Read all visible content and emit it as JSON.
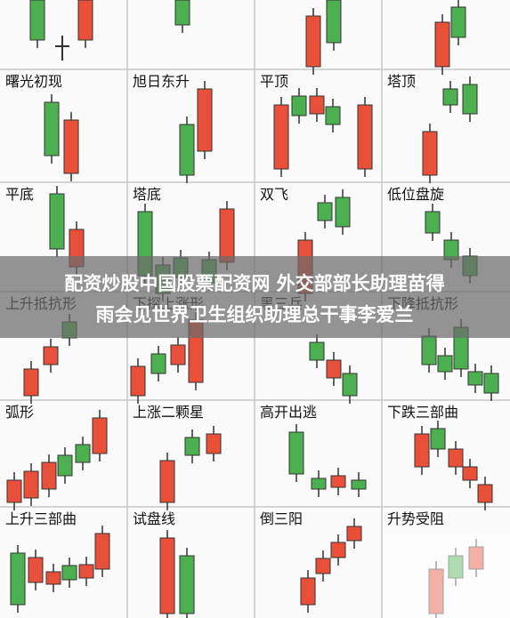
{
  "cells": [
    {
      "label": "曙光初现"
    },
    {
      "label": "旭日东升"
    },
    {
      "label": "平顶"
    },
    {
      "label": "塔顶"
    },
    {
      "label": "平底"
    },
    {
      "label": "塔底"
    },
    {
      "label": "双飞"
    },
    {
      "label": "低位盘旋"
    },
    {
      "label": "上升抵抗形"
    },
    {
      "label": "下探上涨形"
    },
    {
      "label": "黑三兵"
    },
    {
      "label": "下降抵抗形"
    },
    {
      "label": "弧形"
    },
    {
      "label": "上涨二颗星"
    },
    {
      "label": "高开出逃"
    },
    {
      "label": "下跌三部曲"
    },
    {
      "label": "上升三部曲"
    },
    {
      "label": "试盘线"
    },
    {
      "label": "倒三阳"
    },
    {
      "label": "升势受阻"
    }
  ],
  "banner": {
    "lines": [
      "配资炒股中国股票配资网 外交部部长助理苗得",
      "雨会见世界卫生组织助理总干事李爱兰"
    ]
  }
}
